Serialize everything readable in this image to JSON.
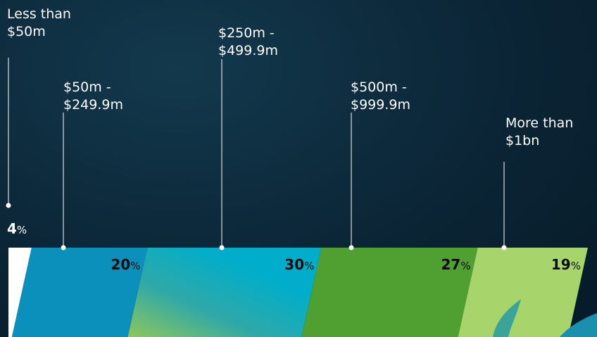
{
  "chart_data": {
    "type": "stacked-bar-100",
    "categories": [
      "Less than $50m",
      "$50m - $249.9m",
      "$250m - $499.9m",
      "$500m - $999.9m",
      "More than $1bn"
    ],
    "values": [
      4,
      20,
      30,
      27,
      19
    ],
    "unit": "%",
    "colors": [
      "#ffffff",
      "#0a90ba",
      "#00aecb",
      "#4f9f31",
      "#a7d46b"
    ]
  }
}
